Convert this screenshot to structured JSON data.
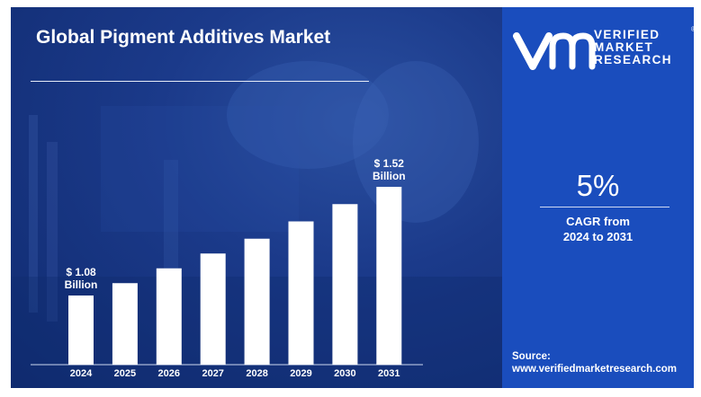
{
  "title": "Global Pigment Additives Market",
  "chart_data": {
    "type": "bar",
    "categories": [
      "2024",
      "2025",
      "2026",
      "2027",
      "2028",
      "2029",
      "2030",
      "2031"
    ],
    "values": [
      1.08,
      1.13,
      1.19,
      1.25,
      1.31,
      1.38,
      1.45,
      1.52
    ],
    "title": "Global Pigment Additives Market",
    "xlabel": "",
    "ylabel": "",
    "ylim": [
      0.8,
      1.6
    ],
    "grid": false,
    "annotations": [
      {
        "category": "2024",
        "lines": [
          "$ 1.08",
          "Billion"
        ]
      },
      {
        "category": "2031",
        "lines": [
          "$ 1.52",
          "Billion"
        ]
      }
    ]
  },
  "cagr": {
    "value": "5%",
    "label_line1": "CAGR from",
    "label_line2": "2024 to 2031"
  },
  "brand": {
    "line1": "VERIFIED",
    "line2": "MARKET",
    "line3": "RESEARCH",
    "registered": "®"
  },
  "source": {
    "label": "Source:",
    "url": "www.verifiedmarketresearch.com"
  },
  "colors": {
    "panel_bg": "#1b3a8a",
    "right_panel": "#1a4dbd",
    "bar": "#ffffff",
    "text": "#ffffff"
  }
}
